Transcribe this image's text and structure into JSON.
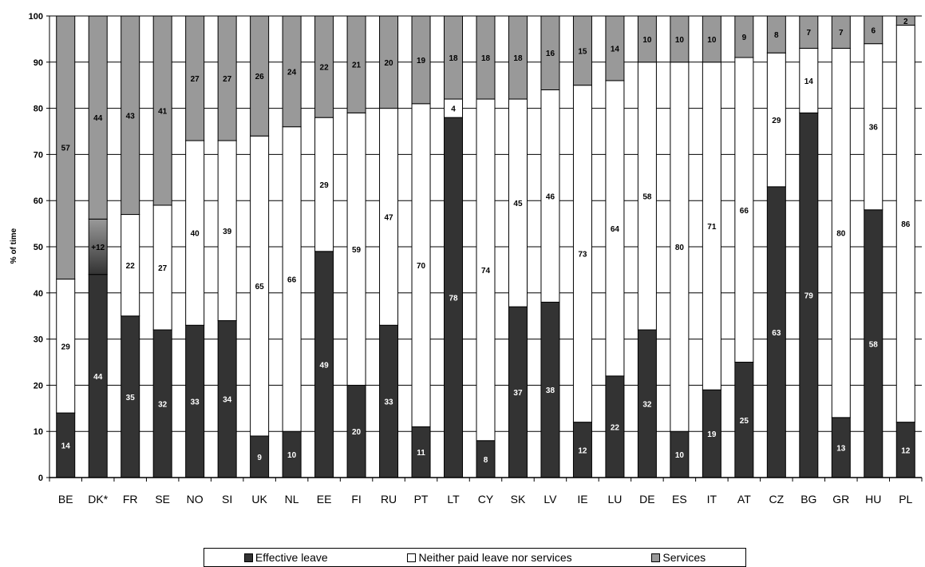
{
  "chart_data": {
    "type": "bar",
    "stacked": true,
    "ylabel": "% of time",
    "ylim": [
      0,
      100
    ],
    "yticks": [
      0,
      10,
      20,
      30,
      40,
      50,
      60,
      70,
      80,
      90,
      100
    ],
    "grid": true,
    "legend_placement": "bottom",
    "categories": [
      "BE",
      "DK*",
      "FR",
      "SE",
      "NO",
      "SI",
      "UK",
      "NL",
      "EE",
      "FI",
      "RU",
      "PT",
      "LT",
      "CY",
      "SK",
      "LV",
      "IE",
      "LU",
      "DE",
      "ES",
      "IT",
      "AT",
      "CZ",
      "BG",
      "GR",
      "HU",
      "PL"
    ],
    "series": [
      {
        "name": "Effective leave",
        "color": "#333333",
        "values": [
          14,
          44,
          35,
          32,
          33,
          34,
          9,
          10,
          49,
          20,
          33,
          11,
          78,
          8,
          37,
          38,
          12,
          22,
          32,
          10,
          19,
          25,
          63,
          79,
          13,
          58,
          12
        ],
        "labels": [
          "14",
          "44",
          "35",
          "32",
          "33",
          "34",
          "9",
          "10",
          "49",
          "20",
          "33",
          "11",
          "78",
          "8",
          "37",
          "38",
          "12",
          "22",
          "32",
          "10",
          "19",
          "25",
          "63",
          "79",
          "13",
          "58",
          "12"
        ]
      },
      {
        "name": "Neither paid leave nor services",
        "color": "#ffffff",
        "values": [
          29,
          0,
          22,
          27,
          40,
          39,
          65,
          66,
          29,
          59,
          47,
          70,
          4,
          74,
          45,
          46,
          73,
          64,
          58,
          80,
          71,
          66,
          29,
          14,
          80,
          36,
          86
        ],
        "labels": [
          "29",
          "",
          "22",
          "27",
          "40",
          "39",
          "65",
          "66",
          "29",
          "59",
          "47",
          "70",
          "4",
          "74",
          "45",
          "46",
          "73",
          "64",
          "58",
          "80",
          "71",
          "66",
          "29",
          "14",
          "80",
          "36",
          "86"
        ]
      },
      {
        "name": "Services",
        "color": "#999999",
        "values": [
          57,
          44,
          43,
          41,
          27,
          27,
          26,
          24,
          22,
          21,
          20,
          19,
          18,
          18,
          18,
          16,
          15,
          14,
          10,
          10,
          10,
          9,
          8,
          7,
          7,
          6,
          2
        ],
        "labels": [
          "57",
          "44",
          "43",
          "41",
          "27",
          "27",
          "26",
          "24",
          "22",
          "21",
          "20",
          "19",
          "18",
          "18",
          "18",
          "16",
          "15",
          "14",
          "10",
          "10",
          "10",
          "9",
          "8",
          "7",
          "7",
          "6",
          "2"
        ]
      }
    ],
    "annotations": [
      {
        "category": "DK*",
        "text": "+12",
        "from": 44,
        "to": 56
      }
    ]
  }
}
